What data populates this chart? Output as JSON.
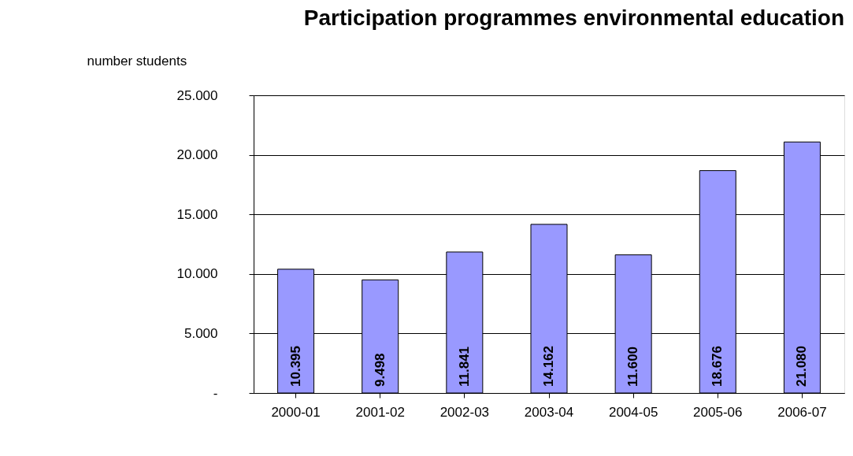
{
  "chart_data": {
    "type": "bar",
    "title": "Participation programmes environmental education",
    "ylabel": "number students",
    "categories": [
      "2000-01",
      "2001-02",
      "2002-03",
      "2003-04",
      "2004-05",
      "2005-06",
      "2006-07"
    ],
    "values": [
      10395,
      9498,
      11841,
      14162,
      11600,
      18676,
      21080
    ],
    "value_labels": [
      "10.395",
      "9.498",
      "11.841",
      "14.162",
      "11.600",
      "18.676",
      "21.080"
    ],
    "color": "#9999ff",
    "ylim": [
      0,
      25000
    ],
    "yticks": [
      {
        "value": 0,
        "label": "-"
      },
      {
        "value": 5000,
        "label": "5.000"
      },
      {
        "value": 10000,
        "label": "10.000"
      },
      {
        "value": 15000,
        "label": "15.000"
      },
      {
        "value": 20000,
        "label": "20.000"
      },
      {
        "value": 25000,
        "label": "25.000"
      }
    ],
    "grid": "y"
  }
}
